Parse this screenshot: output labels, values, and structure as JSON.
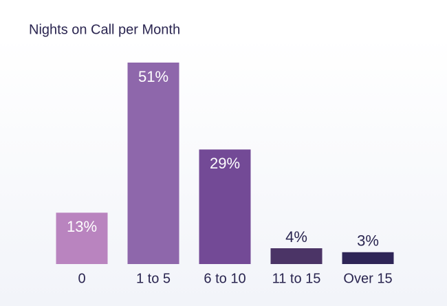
{
  "chart_data": {
    "type": "bar",
    "title": "Nights on Call per Month",
    "categories": [
      "0",
      "1 to 5",
      "6 to 10",
      "11 to 15",
      "Over 15"
    ],
    "values": [
      13,
      51,
      29,
      4,
      3
    ],
    "value_labels": [
      "13%",
      "51%",
      "29%",
      "4%",
      "3%"
    ],
    "colors": [
      "#b984bf",
      "#8e67ab",
      "#734a96",
      "#4b3466",
      "#2e2557"
    ]
  }
}
